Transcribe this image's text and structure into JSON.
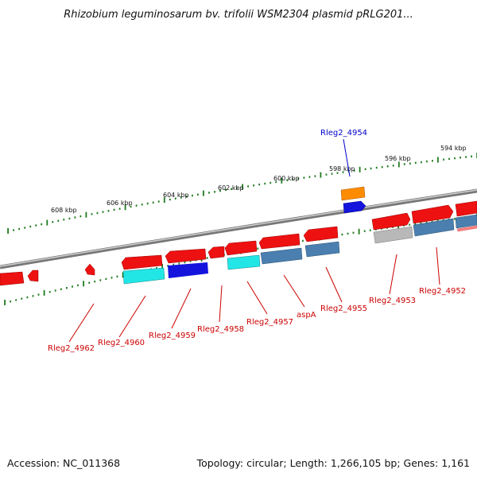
{
  "title": "Rhizobium leguminosarum bv. trifolii WSM2304 plasmid pRLG201...",
  "footer": {
    "accession": "Accession: NC_011368",
    "summary": "Topology: circular; Length: 1,266,105 bp; Genes: 1,161"
  },
  "colors": {
    "label_red": "#cc0000",
    "label_blue": "#0000cc",
    "tick_green": "#1f7a1f",
    "backbone": "#888888",
    "red": "#ee1111",
    "cyan": "#22e6e6",
    "blue": "#1414dd",
    "steel": "#4a7fb0",
    "gray": "#b4b4b4",
    "orange": "#ff8c00",
    "pink": "#ff8080"
  },
  "kbp_labels": [
    "608 kbp",
    "606 kbp",
    "604 kbp",
    "602 kbp",
    "600 kbp",
    "598 kbp",
    "596 kbp",
    "594 kbp"
  ],
  "gene_labels": {
    "Rleg2_4954": "Rleg2_4954",
    "Rleg2_4962": "Rleg2_4962",
    "Rleg2_4960": "Rleg2_4960",
    "Rleg2_4959": "Rleg2_4959",
    "Rleg2_4958": "Rleg2_4958",
    "Rleg2_4957": "Rleg2_4957",
    "aspA": "aspA",
    "Rleg2_4955": "Rleg2_4955",
    "Rleg2_4953": "Rleg2_4953",
    "Rleg2_4952": "Rleg2_4952"
  }
}
